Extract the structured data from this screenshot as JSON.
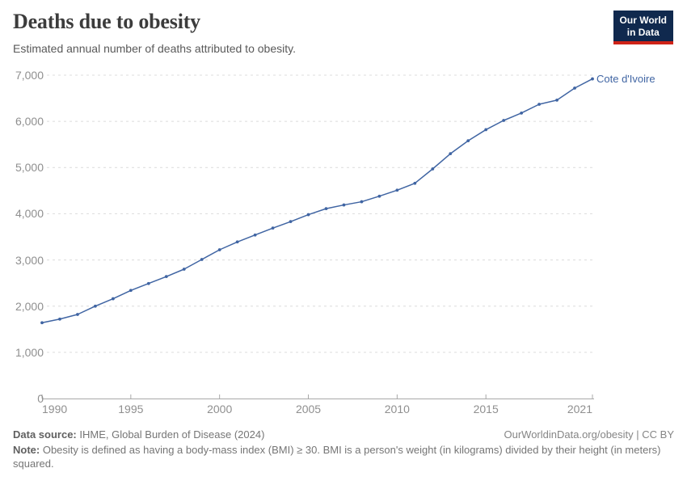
{
  "header": {
    "title": "Deaths due to obesity",
    "subtitle": "Estimated annual number of deaths attributed to obesity.",
    "logo": {
      "line1": "Our World",
      "line2": "in Data",
      "bg_color": "#10294e",
      "accent_color": "#cf2318"
    }
  },
  "chart_data": {
    "type": "line",
    "title": "Deaths due to obesity",
    "entity": "Cote d'Ivoire",
    "x": [
      1990,
      1991,
      1992,
      1993,
      1994,
      1995,
      1996,
      1997,
      1998,
      1999,
      2000,
      2001,
      2002,
      2003,
      2004,
      2005,
      2006,
      2007,
      2008,
      2009,
      2010,
      2011,
      2012,
      2013,
      2014,
      2015,
      2016,
      2017,
      2018,
      2019,
      2020,
      2021
    ],
    "values": [
      1640,
      1720,
      1820,
      2000,
      2160,
      2340,
      2490,
      2640,
      2800,
      3010,
      3220,
      3390,
      3540,
      3690,
      3830,
      3980,
      4110,
      4190,
      4260,
      4380,
      4510,
      4660,
      4970,
      5300,
      5580,
      5820,
      6020,
      6180,
      6370,
      6460,
      6720,
      6920
    ],
    "xlim": [
      1990,
      2021
    ],
    "ylim": [
      0,
      7000
    ],
    "xticks": [
      1990,
      1995,
      2000,
      2005,
      2010,
      2015,
      2021
    ],
    "yticks": [
      0,
      1000,
      2000,
      3000,
      4000,
      5000,
      6000,
      7000
    ],
    "grid": true,
    "legend_position": "end-of-line-label",
    "line_color": "#4065a3",
    "grid_color": "#dcdcdc",
    "axis_color": "#a8a8a8",
    "tick_label_color": "#8f8f8f"
  },
  "footer": {
    "source_label": "Data source:",
    "source_text": " IHME, Global Burden of Disease (2024)",
    "rights": "OurWorldinData.org/obesity | CC BY",
    "note_label": "Note:",
    "note_text": " Obesity is defined as having a body-mass index (BMI) ≥ 30. BMI is a person's weight (in kilograms) divided by their height (in meters) squared."
  }
}
